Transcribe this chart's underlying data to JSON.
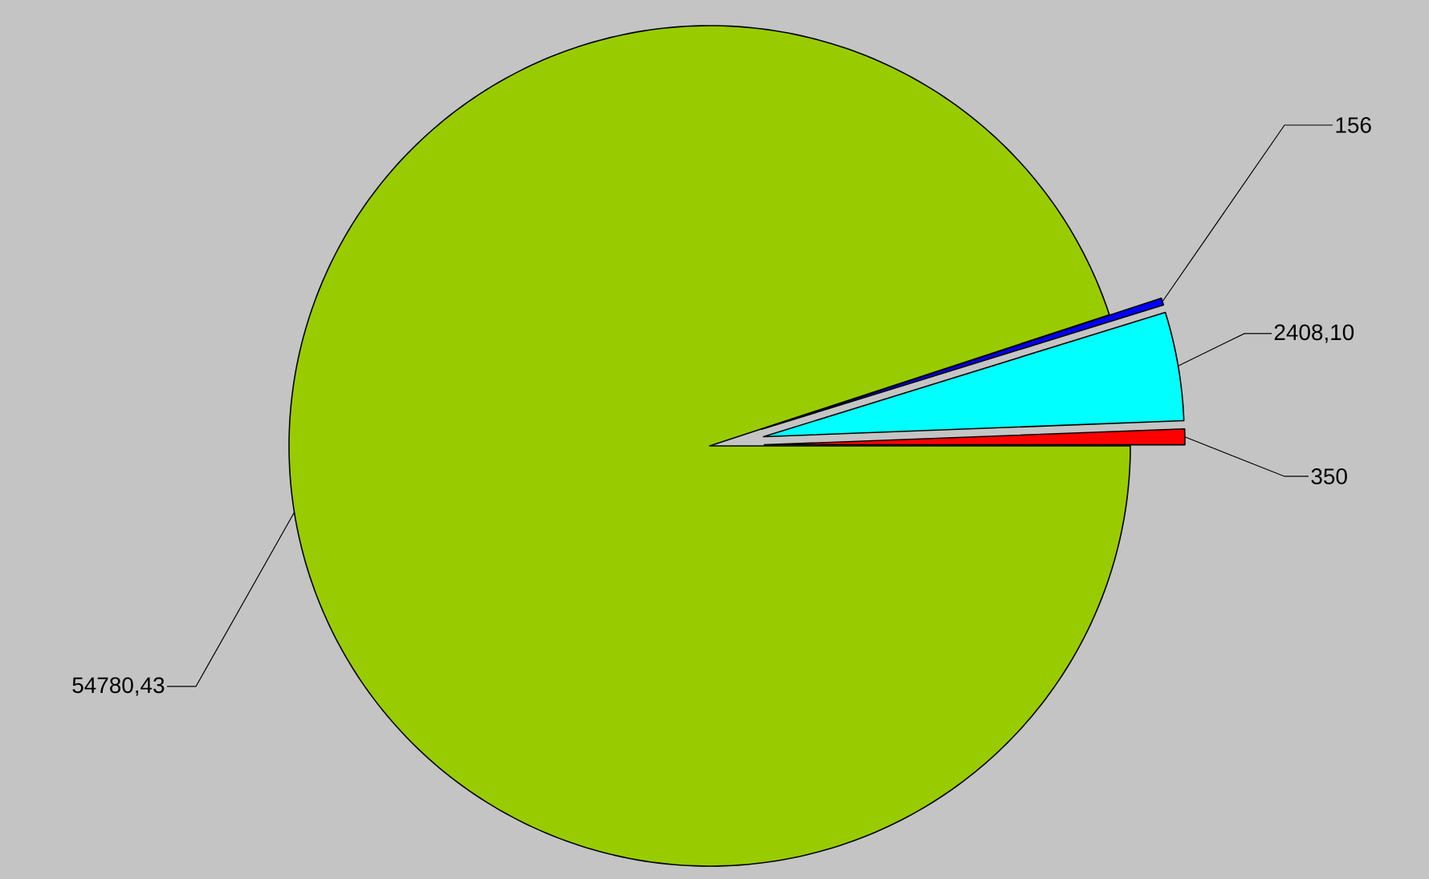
{
  "chart_data": {
    "type": "pie",
    "categories": [
      null,
      null,
      null,
      null
    ],
    "values": [
      350,
      2408.1,
      156,
      54780.43
    ],
    "colors": [
      "#ff0000",
      "#00ffff",
      "#0000ff",
      "#99cc00"
    ],
    "value_labels": [
      "350",
      "2408,10",
      "156",
      "54780,43"
    ]
  }
}
